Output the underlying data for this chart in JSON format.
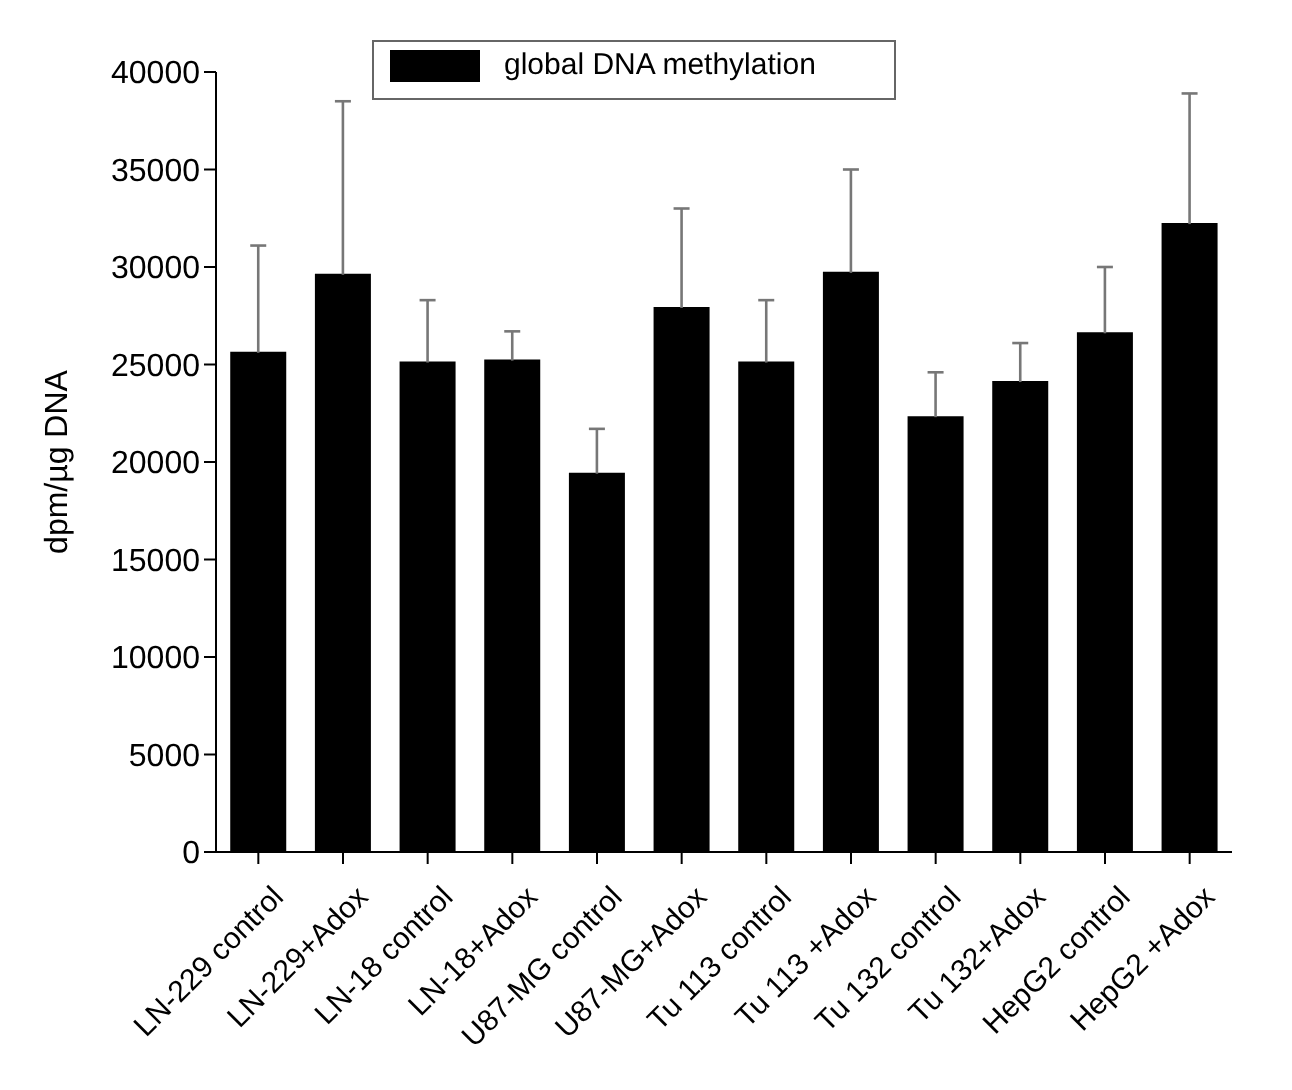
{
  "chart_data": {
    "type": "bar",
    "ylabel": "dpm/µg DNA",
    "categories": [
      "LN-229 control",
      "LN-229+Adox",
      "LN-18 control",
      "LN-18+Adox",
      "U87-MG control",
      "U87-MG+Adox",
      "Tu 113 control",
      "Tu 113 +Adox",
      "Tu 132 control",
      "Tu 132+Adox",
      "HepG2 control",
      "HepG2 +Adox"
    ],
    "series": [
      {
        "name": "global DNA methylation",
        "color": "#000000",
        "values": [
          25600,
          29600,
          25100,
          25200,
          19400,
          27900,
          25100,
          29700,
          22300,
          24100,
          26600,
          32200
        ],
        "errors": [
          [
            25600,
            31100
          ],
          [
            29600,
            38500
          ],
          [
            25100,
            28300
          ],
          [
            25200,
            26700
          ],
          [
            19400,
            21700
          ],
          [
            27900,
            33000
          ],
          [
            25100,
            28300
          ],
          [
            29700,
            35000
          ],
          [
            22300,
            24600
          ],
          [
            24100,
            26100
          ],
          [
            26600,
            30000
          ],
          [
            32200,
            38900
          ]
        ]
      }
    ],
    "ylim": [
      0,
      40000
    ],
    "yticks": [
      0,
      5000,
      10000,
      15000,
      20000,
      25000,
      30000,
      35000,
      40000
    ],
    "legend": "top",
    "grid": false
  }
}
